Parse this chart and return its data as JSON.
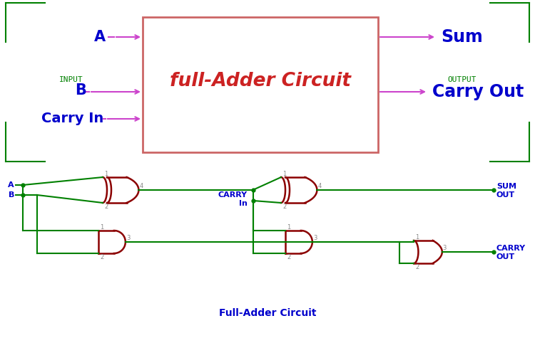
{
  "title_top": "full-Adder Circuit",
  "title_bottom": "Full-Adder Circuit",
  "input_label": "INPUT",
  "output_label": "OUTPUT",
  "input_A": "A",
  "input_B": "B",
  "input_cin": "Carry In",
  "output_sum": "Sum",
  "output_cout": "Carry Out",
  "color_red": "#cc0000",
  "color_green": "#008000",
  "color_blue": "#0000cc",
  "color_magenta": "#cc44cc",
  "color_dark_red": "#8b0000",
  "bg_color": "#ffffff"
}
